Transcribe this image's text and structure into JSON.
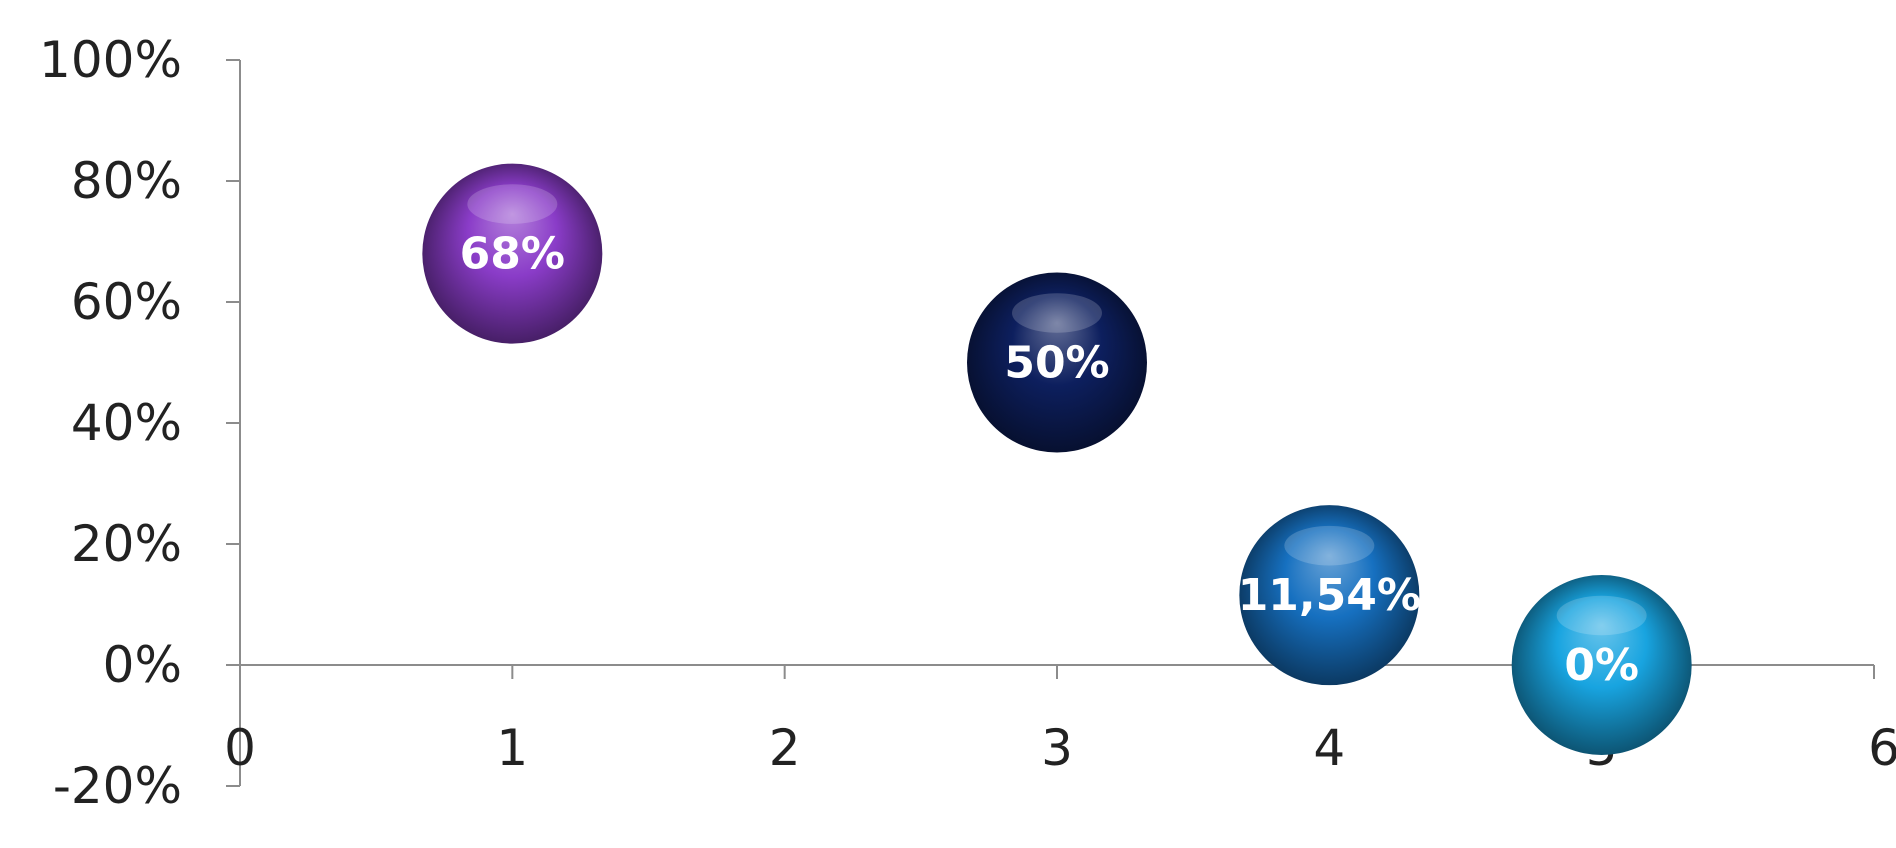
{
  "chart_data": {
    "type": "bubble",
    "xlim": [
      0,
      6
    ],
    "ylim": [
      -20,
      100
    ],
    "x_ticks": [
      "0",
      "1",
      "2",
      "3",
      "4",
      "5",
      "6"
    ],
    "y_ticks": [
      "100%",
      "80%",
      "60%",
      "40%",
      "20%",
      "0%",
      "-20%"
    ],
    "grid": false,
    "points": [
      {
        "x": 1,
        "y": 68,
        "label": "68%",
        "color": "#8a3cc8"
      },
      {
        "x": 3,
        "y": 50,
        "label": "50%",
        "color": "#0d1f5e"
      },
      {
        "x": 4,
        "y": 11.54,
        "label": "11,54%",
        "color": "#1670c0"
      },
      {
        "x": 5,
        "y": 0,
        "label": "0%",
        "color": "#18a4e0"
      }
    ]
  }
}
